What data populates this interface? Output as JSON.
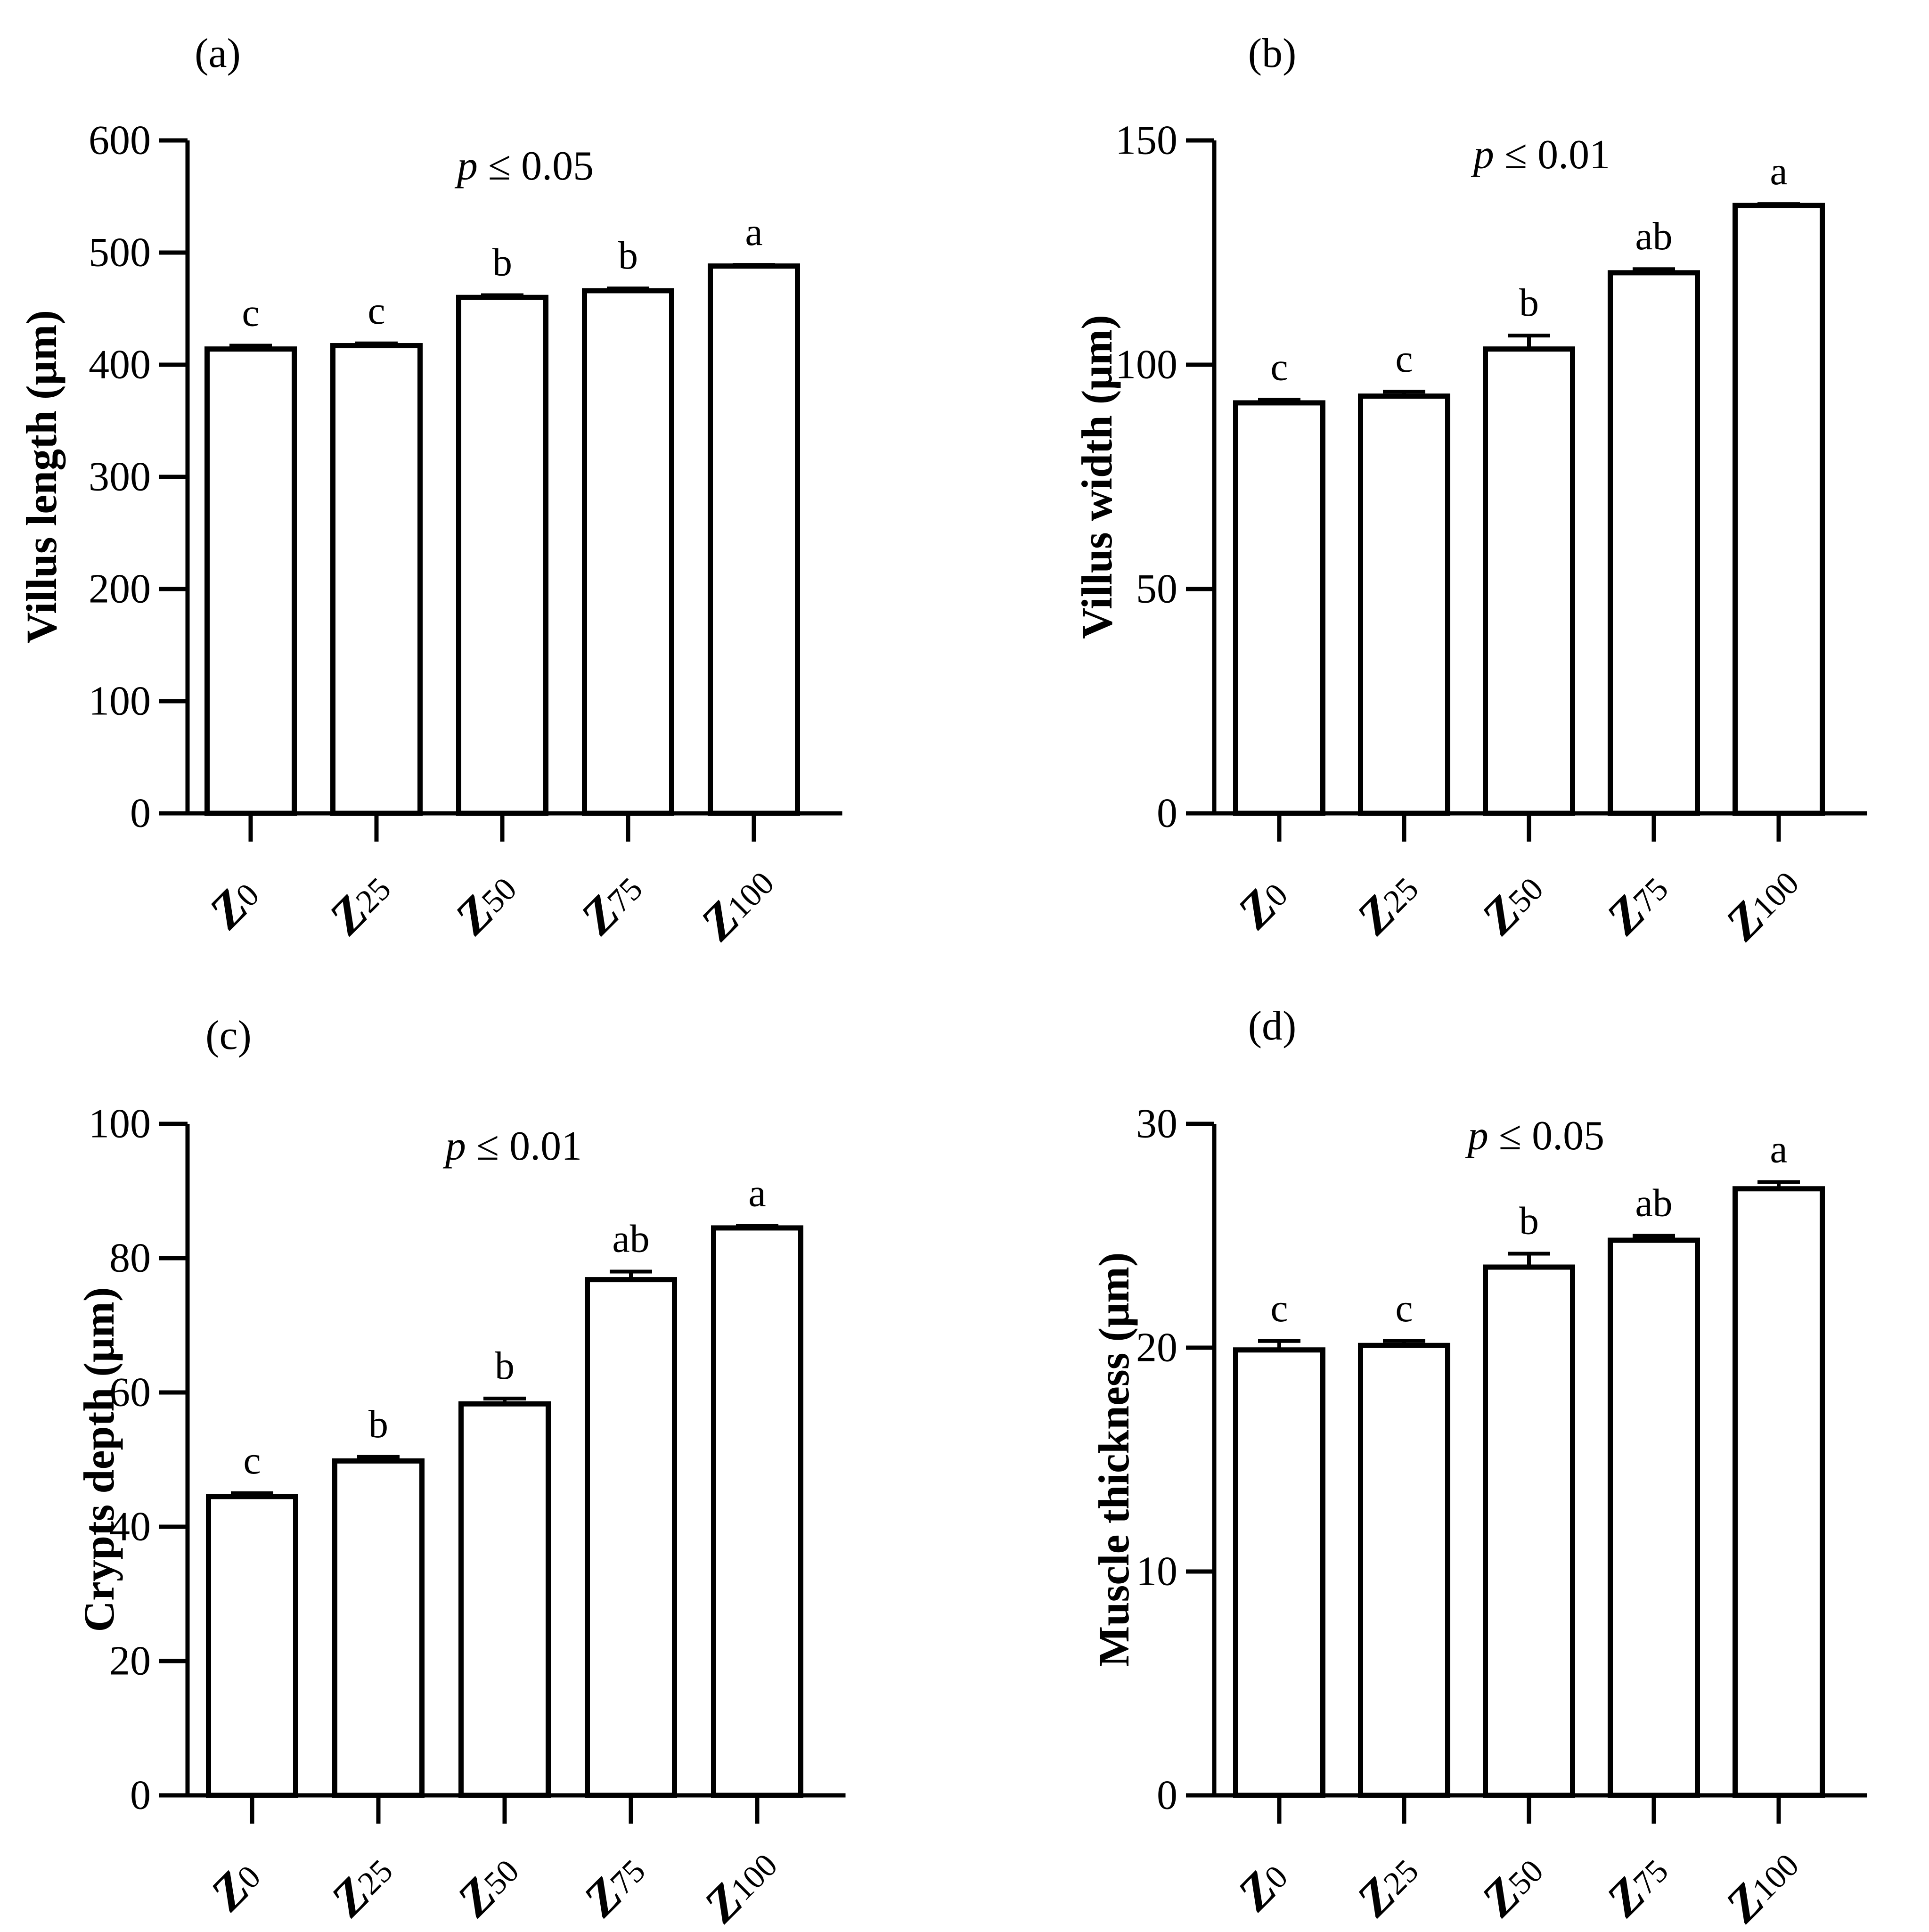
{
  "chart_data": [
    {
      "type": "bar",
      "panel_label": "(a)",
      "ylabel": "Villus length (μm)",
      "annotation": {
        "italic": "p",
        "rest": " ≤ 0.05"
      },
      "ylim": [
        0,
        600
      ],
      "yticks": [
        0,
        100,
        200,
        300,
        400,
        500,
        600
      ],
      "categories": [
        {
          "main": "Z",
          "sub": "0"
        },
        {
          "main": "Z",
          "sub": "25"
        },
        {
          "main": "Z",
          "sub": "50"
        },
        {
          "main": "Z",
          "sub": "75"
        },
        {
          "main": "Z",
          "sub": "100"
        }
      ],
      "values": [
        414,
        417,
        460,
        466,
        488
      ],
      "errors": [
        3,
        2,
        2,
        2,
        1
      ],
      "significance": [
        "c",
        "c",
        "b",
        "b",
        "a"
      ]
    },
    {
      "type": "bar",
      "panel_label": "(b)",
      "ylabel": "Villus width (μm)",
      "annotation": {
        "italic": "p",
        "rest": " ≤ 0.01"
      },
      "ylim": [
        0,
        150
      ],
      "yticks": [
        0,
        50,
        100,
        150
      ],
      "categories": [
        {
          "main": "Z",
          "sub": "0"
        },
        {
          "main": "Z",
          "sub": "25"
        },
        {
          "main": "Z",
          "sub": "50"
        },
        {
          "main": "Z",
          "sub": "75"
        },
        {
          "main": "Z",
          "sub": "100"
        }
      ],
      "values": [
        91.5,
        93,
        103.5,
        120.5,
        135.5
      ],
      "errors": [
        0.7,
        1,
        3,
        0.8,
        0.3
      ],
      "significance": [
        "c",
        "c",
        "b",
        "ab",
        "a"
      ]
    },
    {
      "type": "bar",
      "panel_label": "(c)",
      "ylabel": "Crypts  depth (μm)",
      "annotation": {
        "italic": "p",
        "rest": " ≤ 0.01"
      },
      "ylim": [
        0,
        100
      ],
      "yticks": [
        0,
        20,
        40,
        60,
        80,
        100
      ],
      "categories": [
        {
          "main": "Z",
          "sub": "0"
        },
        {
          "main": "Z",
          "sub": "25"
        },
        {
          "main": "Z",
          "sub": "50"
        },
        {
          "main": "Z",
          "sub": "75"
        },
        {
          "main": "Z",
          "sub": "100"
        }
      ],
      "values": [
        44.5,
        49.8,
        58.3,
        76.8,
        84.5
      ],
      "errors": [
        0.5,
        0.6,
        0.8,
        1.2,
        0.3
      ],
      "significance": [
        "c",
        "b",
        "b",
        "ab",
        "a"
      ]
    },
    {
      "type": "bar",
      "panel_label": "(d)",
      "ylabel": "Muscle thickness (μm)",
      "annotation": {
        "italic": "p",
        "rest": " ≤ 0.05"
      },
      "ylim": [
        0,
        30
      ],
      "yticks": [
        0,
        10,
        20,
        30
      ],
      "categories": [
        {
          "main": "Z",
          "sub": "0"
        },
        {
          "main": "Z",
          "sub": "25"
        },
        {
          "main": "Z",
          "sub": "50"
        },
        {
          "main": "Z",
          "sub": "75"
        },
        {
          "main": "Z",
          "sub": "100"
        }
      ],
      "values": [
        19.9,
        20.1,
        23.6,
        24.8,
        27.1
      ],
      "errors": [
        0.4,
        0.2,
        0.6,
        0.2,
        0.3
      ],
      "significance": [
        "c",
        "c",
        "b",
        "ab",
        "a"
      ]
    }
  ]
}
